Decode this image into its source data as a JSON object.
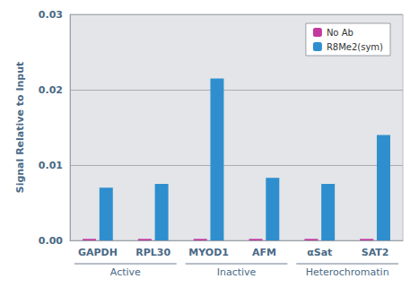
{
  "chart_data": {
    "type": "bar",
    "y_label": "Signal Relative to Input",
    "categories": [
      "GAPDH",
      "RPL30",
      "MYOD1",
      "AFM",
      "αSat",
      "SAT2"
    ],
    "series": [
      {
        "name": "No Ab",
        "color": "#c2399e",
        "values": [
          0.0002,
          0.0002,
          0.0002,
          0.0002,
          0.0002,
          0.0002
        ]
      },
      {
        "name": "R8Me2(sym)",
        "color": "#2f8fce",
        "values": [
          0.007,
          0.0075,
          0.0215,
          0.0083,
          0.0075,
          0.014
        ]
      }
    ],
    "ylim": [
      0,
      0.03
    ],
    "yticks": [
      {
        "value": 0,
        "label": "0.00"
      },
      0.01,
      0.02,
      0.03
    ],
    "grid": true,
    "legend": "upper right",
    "category_groups": [
      {
        "label": "Active",
        "categories": [
          "GAPDH",
          "RPL30"
        ]
      },
      {
        "label": "Inactive",
        "categories": [
          "MYOD1",
          "AFM"
        ]
      },
      {
        "label": "Heterochromatin",
        "categories": [
          "αSat",
          "SAT2"
        ]
      }
    ]
  }
}
